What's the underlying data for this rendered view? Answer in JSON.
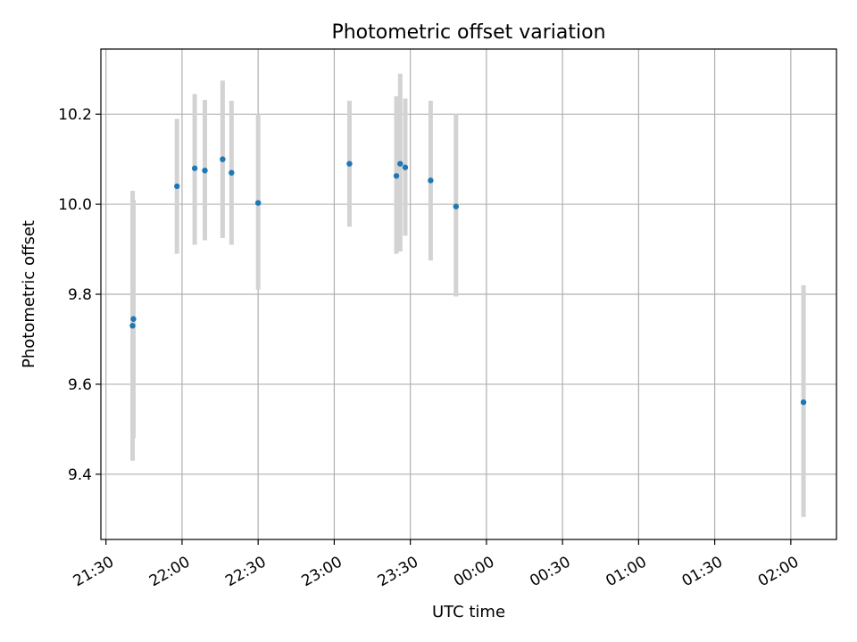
{
  "chart_data": {
    "type": "scatter",
    "title": "Photometric offset variation",
    "xlabel": "UTC time",
    "ylabel": "Photometric offset",
    "xlim": [
      "21:28",
      "02:18"
    ],
    "ylim": [
      9.255,
      10.345
    ],
    "x_ticks": [
      "21:30",
      "22:00",
      "22:30",
      "23:00",
      "23:30",
      "00:00",
      "00:30",
      "01:00",
      "01:30",
      "02:00"
    ],
    "y_ticks": [
      "9.4",
      "9.6",
      "9.8",
      "10.0",
      "10.2"
    ],
    "grid": true,
    "colors": {
      "point": "#1f77b4",
      "error_bar": "#d3d3d3",
      "grid": "#b0b0b0"
    },
    "points": [
      {
        "x": "21:40:30",
        "y": 9.73,
        "yerr_low": 9.43,
        "yerr_high": 10.03
      },
      {
        "x": "21:40:50",
        "y": 9.745,
        "yerr_low": 9.48,
        "yerr_high": 10.01
      },
      {
        "x": "21:58",
        "y": 10.04,
        "yerr_low": 9.89,
        "yerr_high": 10.19
      },
      {
        "x": "22:05",
        "y": 10.08,
        "yerr_low": 9.91,
        "yerr_high": 10.245
      },
      {
        "x": "22:09",
        "y": 10.075,
        "yerr_low": 9.92,
        "yerr_high": 10.232
      },
      {
        "x": "22:16",
        "y": 10.1,
        "yerr_low": 9.925,
        "yerr_high": 10.275
      },
      {
        "x": "22:19:30",
        "y": 10.07,
        "yerr_low": 9.91,
        "yerr_high": 10.23
      },
      {
        "x": "22:30",
        "y": 10.003,
        "yerr_low": 9.81,
        "yerr_high": 10.2
      },
      {
        "x": "23:06",
        "y": 10.09,
        "yerr_low": 9.95,
        "yerr_high": 10.23
      },
      {
        "x": "23:24:30",
        "y": 10.063,
        "yerr_low": 9.89,
        "yerr_high": 10.24
      },
      {
        "x": "23:26",
        "y": 10.09,
        "yerr_low": 9.895,
        "yerr_high": 10.29
      },
      {
        "x": "23:28",
        "y": 10.082,
        "yerr_low": 9.93,
        "yerr_high": 10.235
      },
      {
        "x": "23:38",
        "y": 10.053,
        "yerr_low": 9.875,
        "yerr_high": 10.23
      },
      {
        "x": "23:48",
        "y": 9.995,
        "yerr_low": 9.795,
        "yerr_high": 10.2
      },
      {
        "x": "02:05",
        "y": 9.56,
        "yerr_low": 9.305,
        "yerr_high": 9.82
      }
    ]
  }
}
